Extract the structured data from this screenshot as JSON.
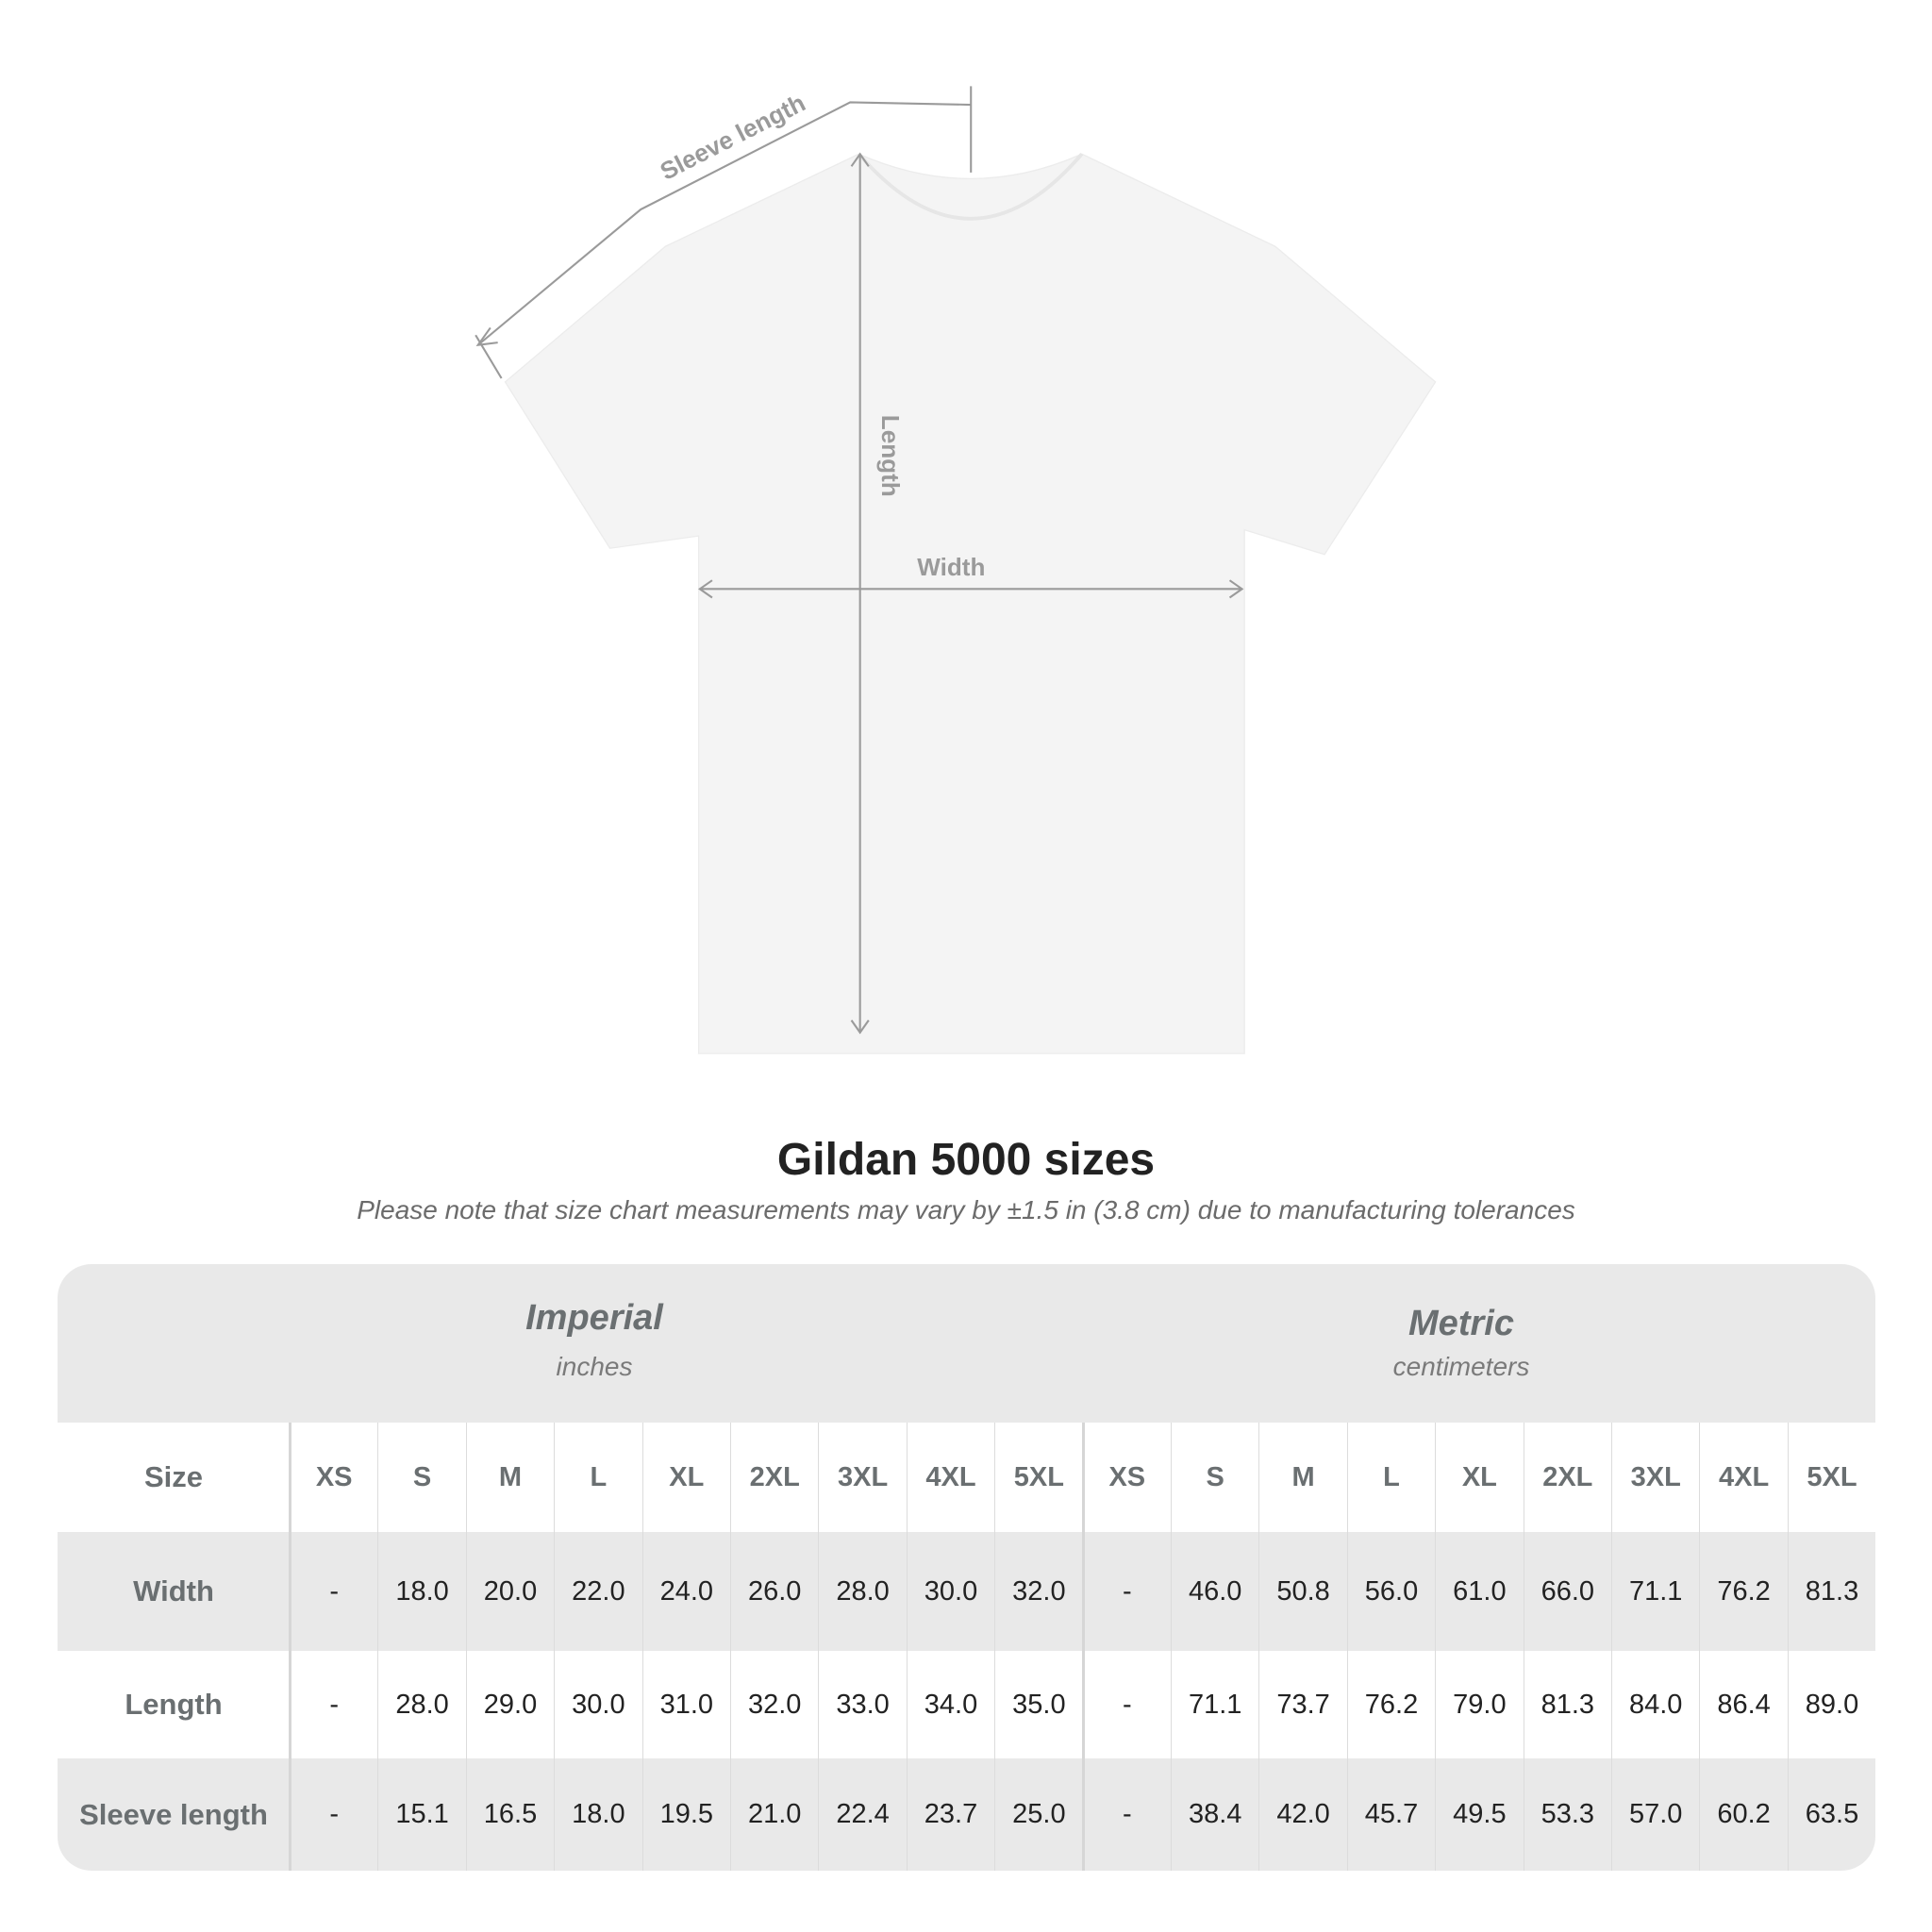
{
  "diagram": {
    "labels": {
      "sleeve": "Sleeve length",
      "length": "Length",
      "width": "Width"
    },
    "shirt_color": "#f4f4f4",
    "arrow_color": "#9a9a9a"
  },
  "title": "Gildan 5000 sizes",
  "note": "Please note that size chart measurements may vary by ±1.5 in (3.8 cm) due to manufacturing tolerances",
  "table": {
    "imperial": {
      "name": "Imperial",
      "unit": "inches"
    },
    "metric": {
      "name": "Metric",
      "unit": "centimeters"
    },
    "size_label": "Size",
    "sizes": [
      "XS",
      "S",
      "M",
      "L",
      "XL",
      "2XL",
      "3XL",
      "4XL",
      "5XL"
    ],
    "rows": [
      {
        "label": "Width",
        "imperial": [
          "-",
          "18.0",
          "20.0",
          "22.0",
          "24.0",
          "26.0",
          "28.0",
          "30.0",
          "32.0"
        ],
        "metric": [
          "-",
          "46.0",
          "50.8",
          "56.0",
          "61.0",
          "66.0",
          "71.1",
          "76.2",
          "81.3"
        ]
      },
      {
        "label": "Length",
        "imperial": [
          "-",
          "28.0",
          "29.0",
          "30.0",
          "31.0",
          "32.0",
          "33.0",
          "34.0",
          "35.0"
        ],
        "metric": [
          "-",
          "71.1",
          "73.7",
          "76.2",
          "79.0",
          "81.3",
          "84.0",
          "86.4",
          "89.0"
        ]
      },
      {
        "label": "Sleeve length",
        "imperial": [
          "-",
          "15.1",
          "16.5",
          "18.0",
          "19.5",
          "21.0",
          "22.4",
          "23.7",
          "25.0"
        ],
        "metric": [
          "-",
          "38.4",
          "42.0",
          "45.7",
          "49.5",
          "53.3",
          "57.0",
          "60.2",
          "63.5"
        ]
      }
    ]
  }
}
